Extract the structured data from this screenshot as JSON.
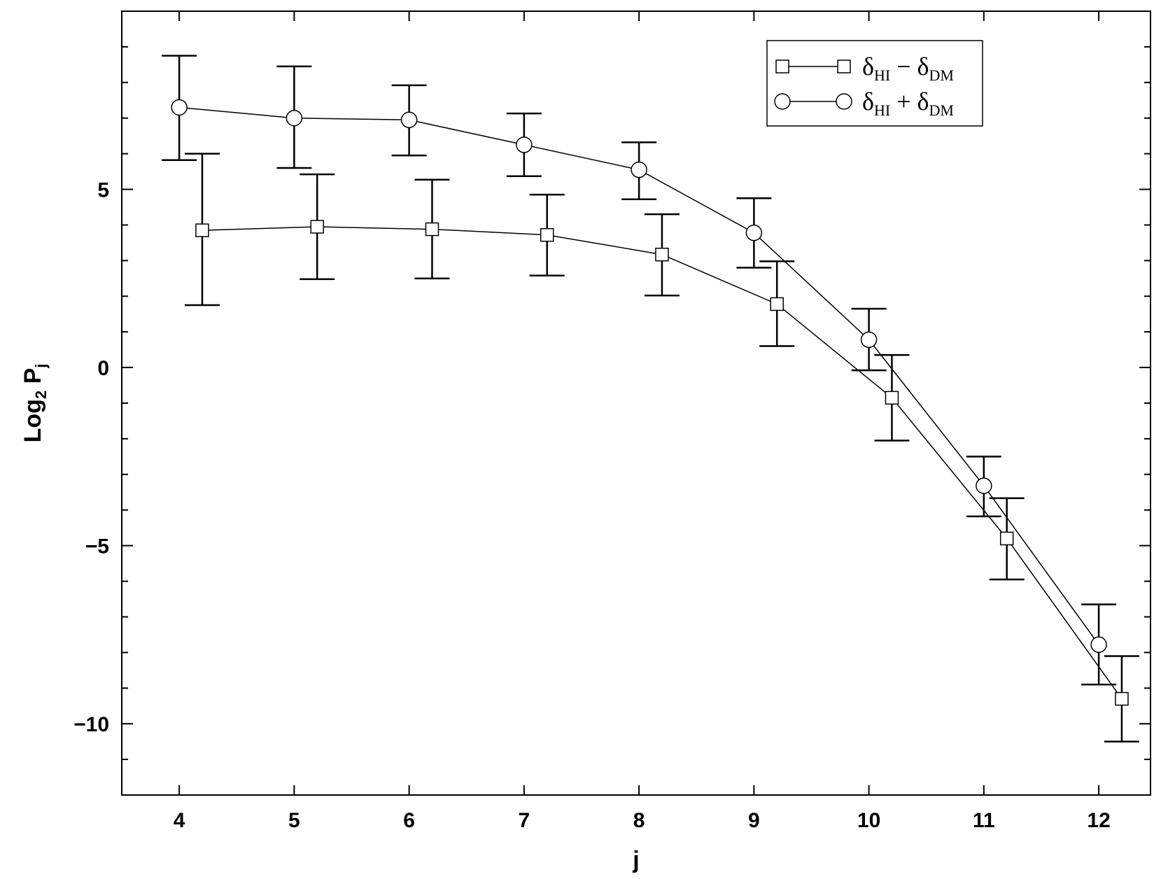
{
  "chart_data": {
    "type": "line",
    "xlabel": "j",
    "ylabel": "Log2 Pj",
    "ylabel_parts": {
      "main": "Log",
      "sub1": "2",
      "main2": " P",
      "sub2": "j"
    },
    "xlim": [
      3.5,
      12.45
    ],
    "ylim": [
      -12,
      10
    ],
    "xticks": [
      4,
      5,
      6,
      7,
      8,
      9,
      10,
      11,
      12
    ],
    "yticks_major": [
      5,
      0,
      -5,
      -10
    ],
    "ytick_labels": [
      "5",
      "0",
      "−5",
      "−10"
    ],
    "yticks_minor": [
      -11,
      -9,
      -8,
      -7,
      -6,
      -4,
      -3,
      -2,
      -1,
      1,
      2,
      3,
      4,
      6,
      7,
      8,
      9
    ],
    "legend_position": "top-right",
    "series": [
      {
        "name": "δHI − δDM",
        "legend": {
          "d1": "δ",
          "s1": "HI",
          "op": " − ",
          "d2": "δ",
          "s2": "DM"
        },
        "marker": "square",
        "x": [
          4.2,
          5.2,
          6.2,
          7.2,
          8.2,
          9.2,
          10.2,
          11.2,
          12.2
        ],
        "y": [
          3.85,
          3.95,
          3.88,
          3.72,
          3.17,
          1.78,
          -0.85,
          -4.8,
          -9.3
        ],
        "err_upper": [
          6.0,
          5.42,
          5.27,
          4.85,
          4.3,
          2.98,
          0.35,
          -3.67,
          -8.1
        ],
        "err_lower": [
          1.75,
          2.48,
          2.5,
          2.58,
          2.02,
          0.6,
          -2.05,
          -5.95,
          -10.5
        ]
      },
      {
        "name": "δHI + δDM",
        "legend": {
          "d1": "δ",
          "s1": "HI",
          "op": " + ",
          "d2": "δ",
          "s2": "DM"
        },
        "marker": "circle",
        "x": [
          4,
          5,
          6,
          7,
          8,
          9,
          10,
          11,
          12
        ],
        "y": [
          7.3,
          7.0,
          6.95,
          6.25,
          5.55,
          3.78,
          0.78,
          -3.32,
          -7.78
        ],
        "err_upper": [
          8.75,
          8.45,
          7.92,
          7.13,
          6.32,
          4.75,
          1.65,
          -2.5,
          -6.65
        ],
        "err_lower": [
          5.82,
          5.6,
          5.95,
          5.37,
          4.72,
          2.8,
          -0.08,
          -4.18,
          -8.9
        ]
      }
    ]
  }
}
